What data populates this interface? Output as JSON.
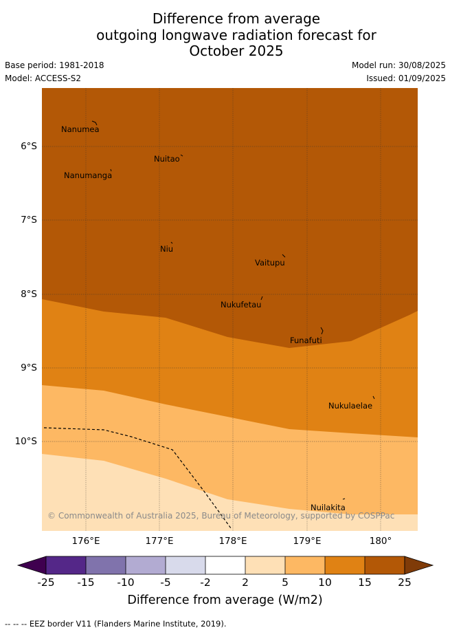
{
  "title": {
    "line1": "Difference from average",
    "line2": "outgoing longwave radiation forecast for",
    "line3": "October 2025"
  },
  "meta": {
    "base_period": "Base period: 1981-2018",
    "model": "Model: ACCESS-S2",
    "model_run": "Model run: 30/08/2025",
    "issued": "Issued: 01/09/2025"
  },
  "map": {
    "latitude_labels": [
      "6°S",
      "7°S",
      "8°S",
      "9°S",
      "10°S"
    ],
    "longitude_labels": [
      "176°E",
      "177°E",
      "178°E",
      "179°E",
      "180°"
    ],
    "places": [
      "Nanumea",
      "Nuitao",
      "Nanumanga",
      "Niu",
      "Vaitupu",
      "Nukufetau",
      "Funafuti",
      "Nukulaelae",
      "Nuilakita"
    ],
    "copyright": "© Commonwealth of Australia 2025, Bureau of Meteorology, supported by COSPPac",
    "band_colors": [
      "#b35806",
      "#e08214",
      "#fdb863",
      "#fee0b6"
    ]
  },
  "colorbar": {
    "ticks": [
      "-25",
      "-15",
      "-10",
      "-5",
      "-2",
      "2",
      "5",
      "10",
      "15",
      "25"
    ],
    "colors": [
      "#3f004f",
      "#542788",
      "#8073ac",
      "#b2abd2",
      "#d8daeb",
      "#ffffff",
      "#fee0b6",
      "#fdb863",
      "#e08214",
      "#b35806",
      "#7f3b08"
    ],
    "label": "Difference from average (W/m2)"
  },
  "footnote": "-- -- -- EEZ border V11 (Flanders Marine Institute, 2019)."
}
